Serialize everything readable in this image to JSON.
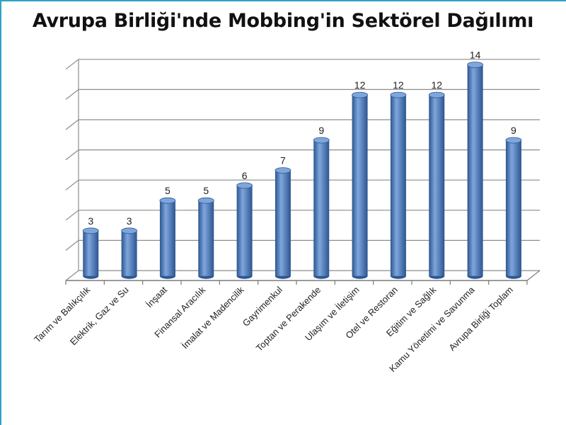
{
  "chart_data": {
    "type": "bar",
    "title": "Avrupa Birliği'nde Mobbing'in Sektörel Dağılımı",
    "categories": [
      "Tarım ve Balıkçılık",
      "Elektrik, Gaz ve Su",
      "İnşaat",
      "Finansal Aracılık",
      "İmalat ve Madencilik",
      "Gayrimenkul",
      "Toptan ve Perakende",
      "Ulaşım ve İletişim",
      "Otel ve Restoran",
      "Eğitim ve Sağlık",
      "Kamu Yönetimi ve Savunma",
      "Avrupa Birliği Toplam"
    ],
    "values": [
      3,
      3,
      5,
      5,
      6,
      7,
      9,
      12,
      12,
      12,
      14,
      9
    ],
    "data_labels": [
      "3",
      "3",
      "5",
      "5",
      "6",
      "7",
      "9",
      "12",
      "12",
      "12",
      "14",
      "9"
    ],
    "ylim": [
      0,
      14
    ],
    "y_gridline_step": 2,
    "y_tick_labels_visible": false,
    "grid": true,
    "legend": "none",
    "three_d": true,
    "bar_color": "#4a7ec4",
    "bar_color_dark": "#2c5691",
    "bar_color_light": "#7fa6dc",
    "grid_color": "#8c8c8c"
  }
}
